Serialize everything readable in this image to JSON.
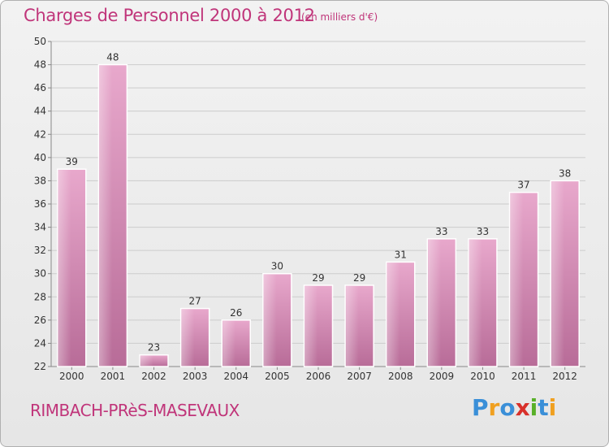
{
  "header": {
    "title": "Charges de Personnel 2000 à 2012",
    "unit": "(en milliers d'€)"
  },
  "footer": {
    "commune": "RIMBACH-PRèS-MASEVAUX",
    "logo_text": "Proxiti",
    "logo_letters": [
      {
        "char": "P",
        "color": "#3a8fd8"
      },
      {
        "char": "r",
        "color": "#f0a020"
      },
      {
        "char": "o",
        "color": "#3a8fd8"
      },
      {
        "char": "x",
        "color": "#d8302a"
      },
      {
        "char": "i",
        "color": "#58b028"
      },
      {
        "char": "t",
        "color": "#3a8fd8"
      },
      {
        "char": "i",
        "color": "#f0a020"
      }
    ]
  },
  "colors": {
    "accent": "#c0357a",
    "bar_top": "#e8a8cc",
    "bar_bottom": "#b86c98",
    "grid": "#cccccc"
  },
  "chart_data": {
    "type": "bar",
    "categories": [
      "2000",
      "2001",
      "2002",
      "2003",
      "2004",
      "2005",
      "2006",
      "2007",
      "2008",
      "2009",
      "2010",
      "2011",
      "2012"
    ],
    "values": [
      39,
      48,
      23,
      27,
      26,
      30,
      29,
      29,
      31,
      33,
      33,
      37,
      38
    ],
    "ylim": [
      22,
      50
    ],
    "yticks": [
      22,
      24,
      26,
      28,
      30,
      32,
      34,
      36,
      38,
      40,
      42,
      44,
      46,
      48,
      50
    ],
    "grid": true
  }
}
